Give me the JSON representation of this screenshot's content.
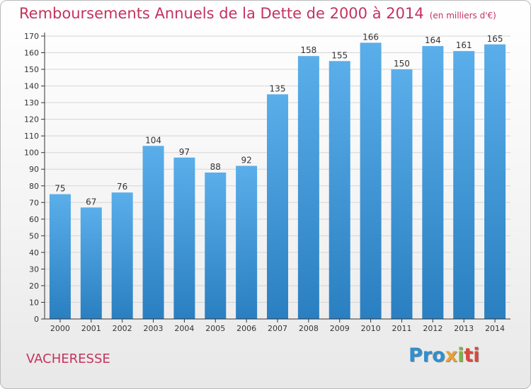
{
  "page": {
    "title": "Remboursements Annuels de la Dette de 2000 à 2014",
    "subtitle": "(en milliers d'€)",
    "commune": "VACHERESSE",
    "logo": {
      "p1": "Pro",
      "p2": "x",
      "p3": "i",
      "p4": "ti",
      "full": "Proxiti"
    }
  },
  "colors": {
    "title": "#c4335f",
    "bar_top": "#5aaeea",
    "bar_bottom": "#2a7fc0",
    "grid": "#d5d5d5",
    "axis": "#333333"
  },
  "chart_data": {
    "type": "bar",
    "title": "Remboursements Annuels de la Dette de 2000 à 2014",
    "subtitle": "(en milliers d'€)",
    "xlabel": "",
    "ylabel": "",
    "categories": [
      "2000",
      "2001",
      "2002",
      "2003",
      "2004",
      "2005",
      "2006",
      "2007",
      "2008",
      "2009",
      "2010",
      "2011",
      "2012",
      "2013",
      "2014"
    ],
    "values": [
      75,
      67,
      76,
      104,
      97,
      88,
      92,
      135,
      158,
      155,
      166,
      150,
      164,
      161,
      165
    ],
    "ylim": [
      0,
      170
    ],
    "yticks": [
      0,
      10,
      20,
      30,
      40,
      50,
      60,
      70,
      80,
      90,
      100,
      110,
      120,
      130,
      140,
      150,
      160,
      170
    ],
    "grid": true,
    "legend": "none"
  }
}
